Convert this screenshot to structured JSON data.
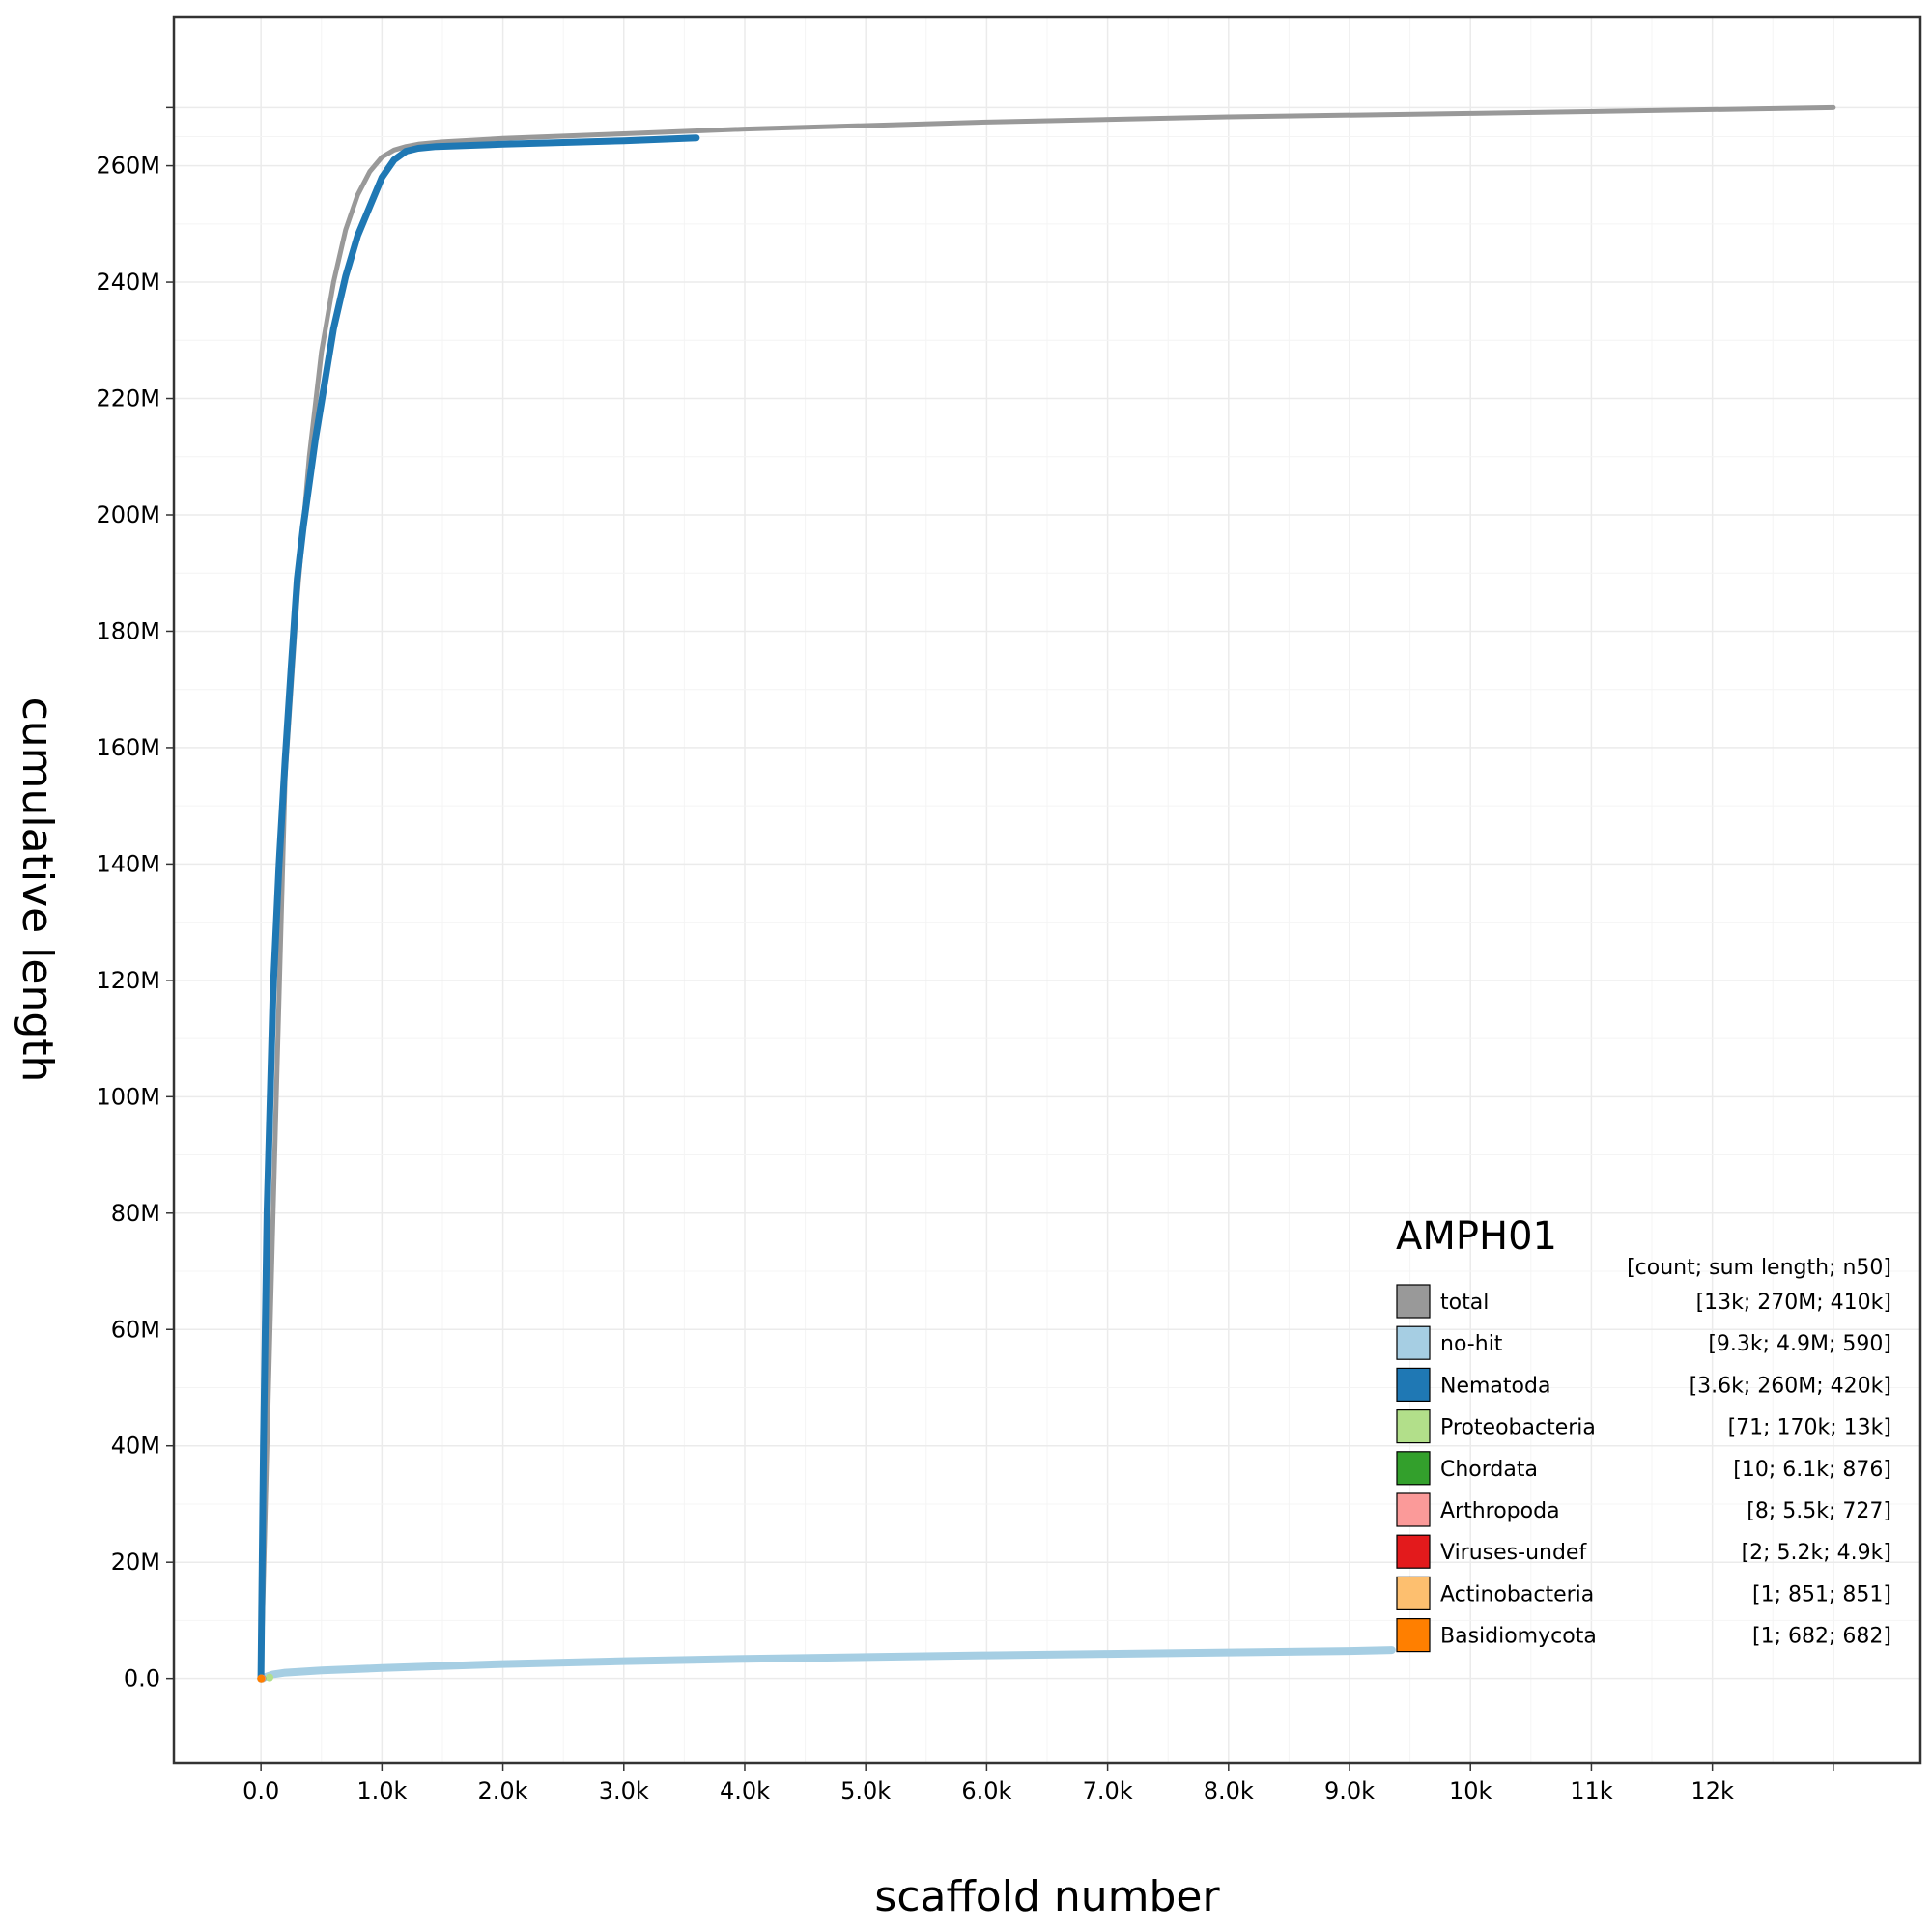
{
  "chart_data": {
    "type": "line",
    "xlabel": "scaffold number",
    "ylabel": "cumulative length",
    "xlim": [
      -720,
      13720
    ],
    "ylim": [
      -14500000,
      285500000
    ],
    "grid": true,
    "x_ticks": [
      {
        "value": 0,
        "label": "0.0"
      },
      {
        "value": 1000,
        "label": "1.0k"
      },
      {
        "value": 2000,
        "label": "2.0k"
      },
      {
        "value": 3000,
        "label": "3.0k"
      },
      {
        "value": 4000,
        "label": "4.0k"
      },
      {
        "value": 5000,
        "label": "5.0k"
      },
      {
        "value": 6000,
        "label": "6.0k"
      },
      {
        "value": 7000,
        "label": "7.0k"
      },
      {
        "value": 8000,
        "label": "8.0k"
      },
      {
        "value": 9000,
        "label": "9.0k"
      },
      {
        "value": 10000,
        "label": "10k"
      },
      {
        "value": 11000,
        "label": "11k"
      },
      {
        "value": 12000,
        "label": "12k"
      },
      {
        "value": 13000,
        "label": ""
      }
    ],
    "y_ticks": [
      {
        "value": 0,
        "label": "0.0"
      },
      {
        "value": 20000000,
        "label": "20M"
      },
      {
        "value": 40000000,
        "label": "40M"
      },
      {
        "value": 60000000,
        "label": "60M"
      },
      {
        "value": 80000000,
        "label": "80M"
      },
      {
        "value": 100000000,
        "label": "100M"
      },
      {
        "value": 120000000,
        "label": "120M"
      },
      {
        "value": 140000000,
        "label": "140M"
      },
      {
        "value": 160000000,
        "label": "160M"
      },
      {
        "value": 180000000,
        "label": "180M"
      },
      {
        "value": 200000000,
        "label": "200M"
      },
      {
        "value": 220000000,
        "label": "220M"
      },
      {
        "value": 240000000,
        "label": "240M"
      },
      {
        "value": 260000000,
        "label": "260M"
      },
      {
        "value": 270000000,
        "label": ""
      }
    ],
    "legend": {
      "title": "AMPH01",
      "header": "[count; sum length; n50]",
      "placement": "bottom-right"
    },
    "series": [
      {
        "name": "total",
        "stats": "[13k; 270M; 410k]",
        "color": "#999999",
        "x": [
          0,
          100,
          200,
          300,
          400,
          500,
          600,
          700,
          800,
          900,
          1000,
          1100,
          1200,
          1300,
          1500,
          2000,
          3000,
          4000,
          6000,
          8000,
          10000,
          13000
        ],
        "y": [
          0,
          80000000,
          155000000,
          186000000,
          210000000,
          228000000,
          240000000,
          249000000,
          255000000,
          259000000,
          261500000,
          262700000,
          263300000,
          263700000,
          264100000,
          264700000,
          265500000,
          266300000,
          267500000,
          268400000,
          269000000,
          270000000
        ]
      },
      {
        "name": "no-hit",
        "stats": "[9.3k; 4.9M; 590]",
        "color": "#a6cee3",
        "x": [
          0,
          100,
          200,
          500,
          1000,
          2000,
          3000,
          4000,
          5000,
          6000,
          7000,
          8000,
          9000,
          9350
        ],
        "y": [
          0,
          700000,
          1000000,
          1400000,
          1800000,
          2500000,
          3000000,
          3400000,
          3700000,
          4000000,
          4250000,
          4500000,
          4750000,
          4900000
        ]
      },
      {
        "name": "Nematoda",
        "stats": "[3.6k; 260M; 420k]",
        "color": "#1f78b4",
        "x": [
          0,
          20,
          50,
          100,
          150,
          200,
          250,
          300,
          350,
          450,
          600,
          700,
          800,
          900,
          1000,
          1100,
          1200,
          1300,
          1450,
          2000,
          2500,
          3000,
          3600
        ],
        "y": [
          0,
          40000000,
          80000000,
          118000000,
          140000000,
          158000000,
          174000000,
          189000000,
          198000000,
          213000000,
          232000000,
          241000000,
          248000000,
          253000000,
          258000000,
          261000000,
          262500000,
          263000000,
          263300000,
          263700000,
          264000000,
          264300000,
          264800000
        ]
      },
      {
        "name": "Proteobacteria",
        "stats": "[71; 170k; 13k]",
        "color": "#b2df8a",
        "x": [
          0,
          71
        ],
        "y": [
          0,
          170000
        ]
      },
      {
        "name": "Chordata",
        "stats": "[10; 6.1k; 876]",
        "color": "#33a02c",
        "x": [
          0,
          10
        ],
        "y": [
          0,
          6100
        ]
      },
      {
        "name": "Arthropoda",
        "stats": "[8; 5.5k; 727]",
        "color": "#fb9a99",
        "x": [
          0,
          8
        ],
        "y": [
          0,
          5500
        ]
      },
      {
        "name": "Viruses-undef",
        "stats": "[2; 5.2k; 4.9k]",
        "color": "#e31a1c",
        "x": [
          0,
          2
        ],
        "y": [
          0,
          5200
        ]
      },
      {
        "name": "Actinobacteria",
        "stats": "[1; 851; 851]",
        "color": "#fdbf6f",
        "x": [
          0,
          1
        ],
        "y": [
          0,
          851
        ]
      },
      {
        "name": "Basidiomycota",
        "stats": "[1; 682; 682]",
        "color": "#ff7f00",
        "x": [
          0,
          1
        ],
        "y": [
          0,
          682
        ]
      }
    ]
  }
}
